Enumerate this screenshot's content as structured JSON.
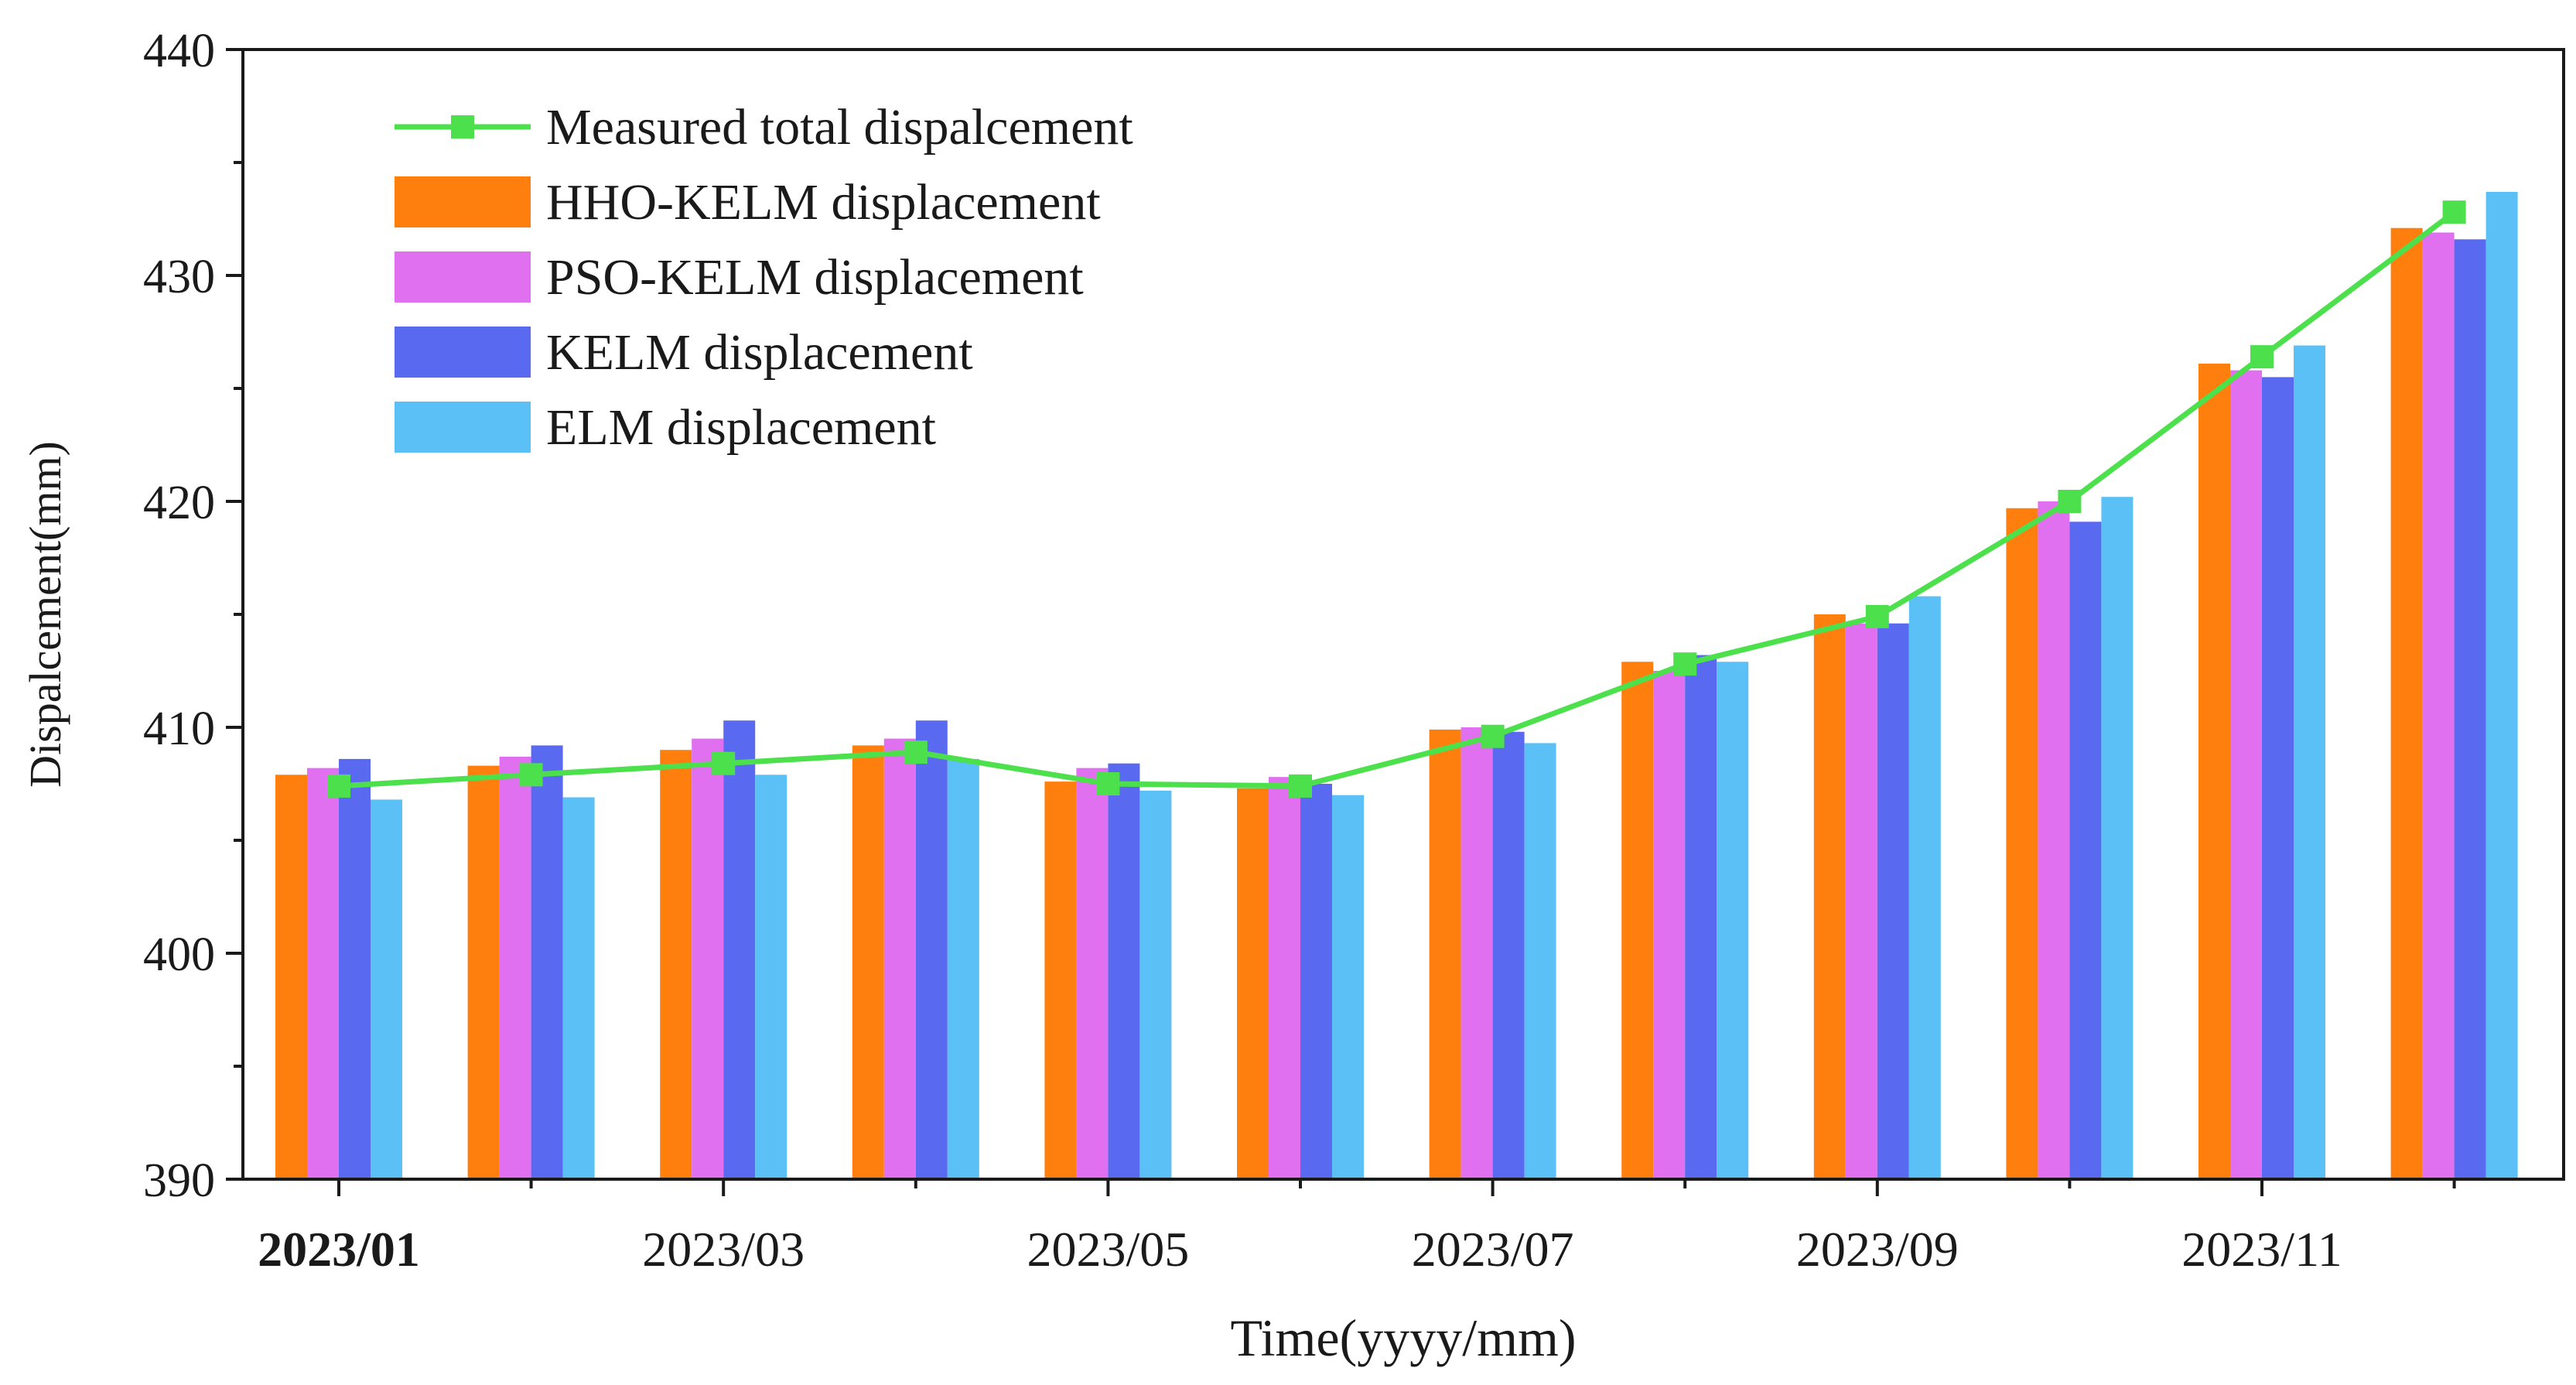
{
  "chart_data": {
    "type": "bar",
    "title": "",
    "xlabel": "Time(yyyy/mm)",
    "ylabel": "Dispalcement(mm)",
    "ylim": [
      390,
      440
    ],
    "y_ticks": [
      "390",
      "400",
      "410",
      "420",
      "430",
      "440"
    ],
    "y_tick_values": [
      390,
      400,
      410,
      420,
      430,
      440
    ],
    "categories": [
      "2023/01",
      "2023/02",
      "2023/03",
      "2023/04",
      "2023/05",
      "2023/06",
      "2023/07",
      "2023/08",
      "2023/09",
      "2023/10",
      "2023/11",
      "2023/12"
    ],
    "x_tick_labels": [
      "2023/01",
      "2023/03",
      "2023/05",
      "2023/07",
      "2023/09",
      "2023/11"
    ],
    "x_tick_category_index": [
      0,
      2,
      4,
      6,
      8,
      10
    ],
    "legend_position": "top-left",
    "series": [
      {
        "name": "HHO-KELM displacement",
        "type": "bar",
        "color": "#FF7F0E",
        "values": [
          407.9,
          408.3,
          409.0,
          409.2,
          407.6,
          407.3,
          409.9,
          412.9,
          415.0,
          419.7,
          426.1,
          432.1
        ]
      },
      {
        "name": "PSO-KELM displacement",
        "type": "bar",
        "color": "#E070F0",
        "values": [
          408.2,
          408.7,
          409.5,
          409.5,
          408.2,
          407.8,
          410.0,
          412.5,
          414.6,
          420.0,
          425.8,
          431.9
        ]
      },
      {
        "name": "KELM displacement",
        "type": "bar",
        "color": "#5A6AF0",
        "values": [
          408.6,
          409.2,
          410.3,
          410.3,
          408.4,
          407.5,
          409.8,
          413.2,
          414.6,
          419.1,
          425.5,
          431.6
        ]
      },
      {
        "name": "ELM displacement",
        "type": "bar",
        "color": "#5BC0F5",
        "values": [
          406.8,
          406.9,
          407.9,
          408.6,
          407.2,
          407.0,
          409.3,
          412.9,
          415.8,
          420.2,
          426.9,
          433.7
        ]
      },
      {
        "name": "Measured total dispalcement",
        "type": "line",
        "color": "#4CE04C",
        "values": [
          407.4,
          407.9,
          408.4,
          408.9,
          407.5,
          407.4,
          409.6,
          412.8,
          414.9,
          420.0,
          426.4,
          432.8
        ]
      }
    ]
  }
}
